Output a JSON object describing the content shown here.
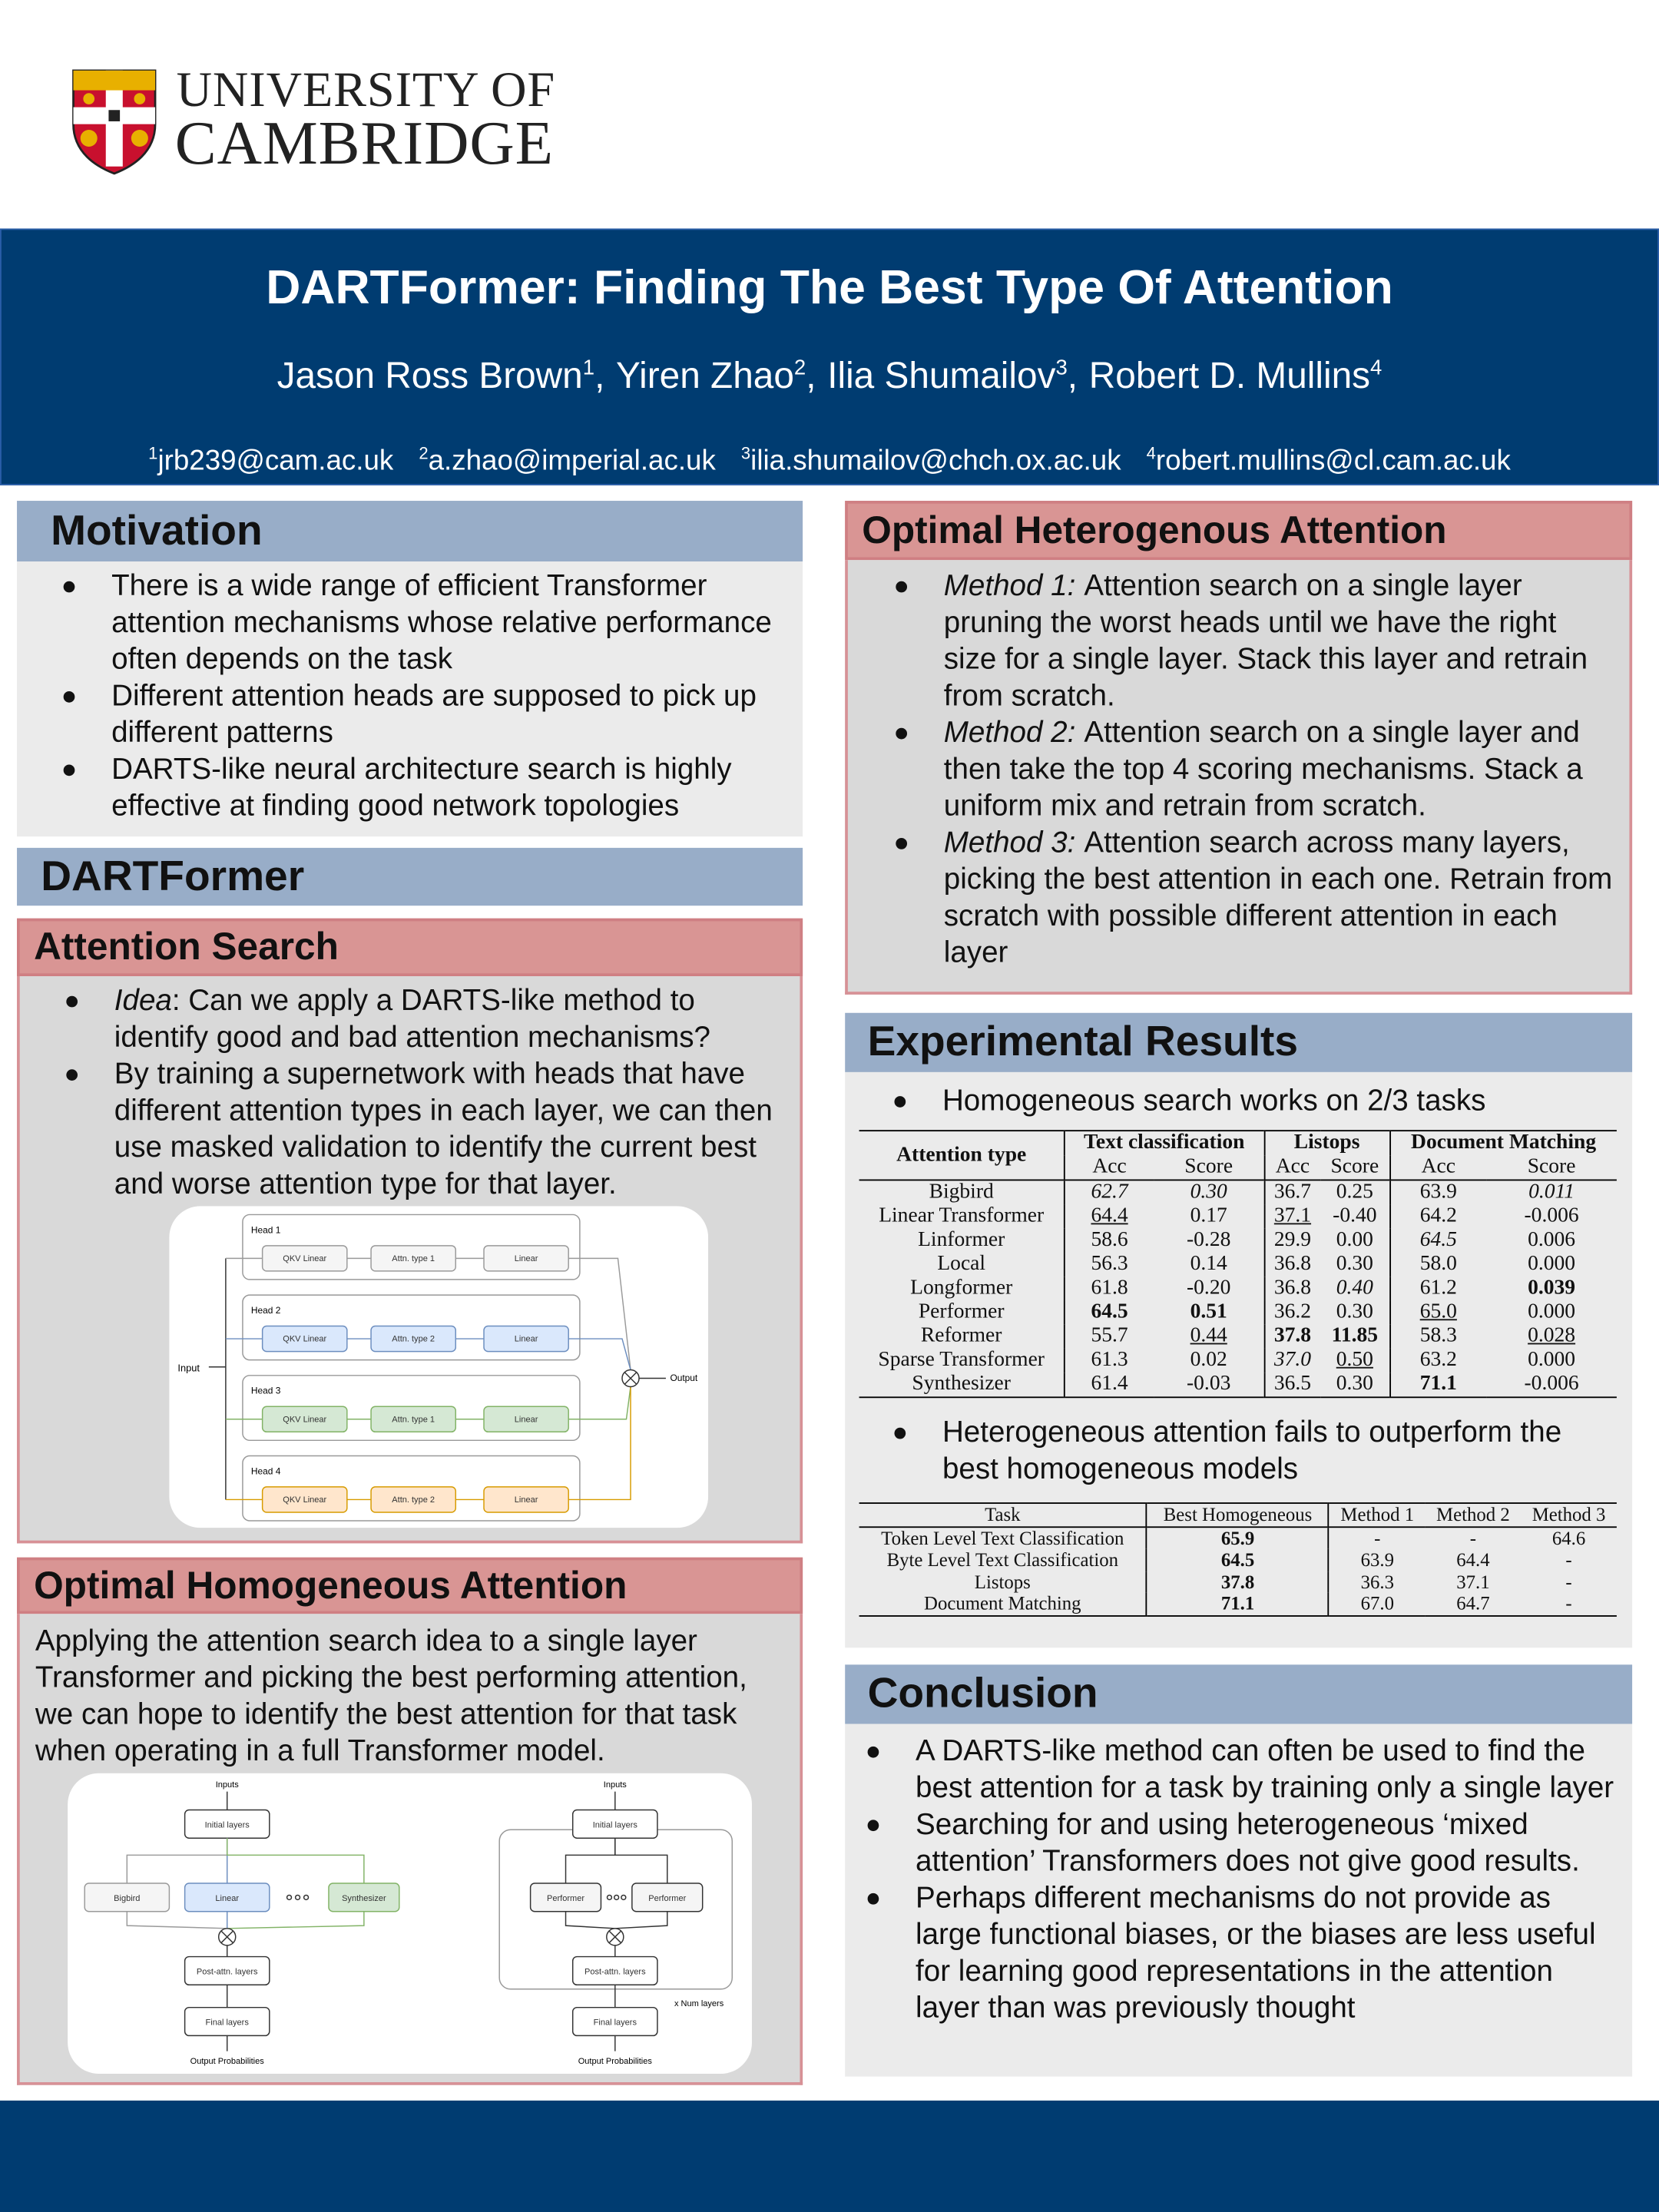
{
  "header": {
    "institution_line1": "UNIVERSITY OF",
    "institution_line2": "CAMBRIDGE",
    "title": "DARTFormer: Finding The Best Type Of Attention",
    "authors": [
      {
        "name": "Jason Ross Brown",
        "mark": "1",
        "separator": ","
      },
      {
        "name": "Yiren Zhao",
        "mark": "2",
        "separator": ","
      },
      {
        "name": "Ilia Shumailov",
        "mark": "3",
        "separator": ","
      },
      {
        "name": "Robert D. Mullins",
        "mark": "4"
      }
    ],
    "emails": [
      {
        "mark": "1",
        "address": "jrb239@cam.ac.uk"
      },
      {
        "mark": "2",
        "address": "a.zhao@imperial.ac.uk"
      },
      {
        "mark": "3",
        "address": "ilia.shumailov@chch.ox.ac.uk"
      },
      {
        "mark": "4",
        "address": "robert.mullins@cl.cam.ac.uk"
      }
    ]
  },
  "motivation": {
    "heading": "Motivation",
    "bullets": [
      "There is a wide range of efficient Transformer attention mechanisms whose relative performance often depends on the task",
      "Different attention heads are supposed to pick up different patterns",
      "DARTS-like neural architecture search is highly effective at finding good network topologies"
    ]
  },
  "dartformer": {
    "heading": "DARTFormer"
  },
  "attention_search": {
    "heading": "Attention Search",
    "bullets": [
      {
        "lead": "Idea",
        "text": ": Can we apply a DARTS-like method to identify good and bad attention mechanisms?"
      },
      "By training a supernetwork with heads that have different attention types in each layer, we can then use masked validation to identify the current best and worse attention type for that layer."
    ],
    "diagram": {
      "input": "Input",
      "output": "Output",
      "heads": [
        {
          "label": "Head 1",
          "blocks": [
            "QKV Linear",
            "Attn. type 1",
            "Linear"
          ]
        },
        {
          "label": "Head 2",
          "blocks": [
            "QKV Linear",
            "Attn. type 2",
            "Linear"
          ]
        },
        {
          "label": "Head 3",
          "blocks": [
            "QKV Linear",
            "Attn. type 1",
            "Linear"
          ]
        },
        {
          "label": "Head 4",
          "blocks": [
            "QKV Linear",
            "Attn. type 2",
            "Linear"
          ]
        }
      ]
    }
  },
  "optimal_homogeneous": {
    "heading": "Optimal Homogeneous Attention",
    "text": "Applying the attention search idea to a single layer Transformer and picking the best performing attention, we can hope to identify the best attention for that task when operating in a full Transformer model.",
    "diagram": {
      "left": {
        "inputs": "Inputs",
        "initial": "Initial layers",
        "attention": [
          "Bigbird",
          "Linear",
          "Synthesizer"
        ],
        "post": "Post-attn. layers",
        "final": "Final layers",
        "output": "Output Probabilities"
      },
      "right": {
        "inputs": "Inputs",
        "initial": "Initial layers",
        "attention": [
          "Performer",
          "Performer"
        ],
        "post": "Post-attn. layers",
        "repeat": "x Num layers",
        "final": "Final layers",
        "output": "Output Probabilities"
      }
    }
  },
  "optimal_heterogeneous": {
    "heading": "Optimal Heterogenous Attention",
    "bullets": [
      {
        "lead": "Method 1:",
        "text": "Attention search on a single layer pruning the worst heads until we have the right size for a single layer. Stack this layer and retrain from scratch."
      },
      {
        "lead": "Method 2:",
        "text": "Attention search on a single layer and then take the top 4 scoring mechanisms. Stack a uniform mix and retrain from scratch."
      },
      {
        "lead": "Method 3:",
        "text": "Attention search across many layers, picking the best attention in each one. Retrain from scratch with possible different attention in each layer"
      }
    ]
  },
  "experimental_results": {
    "heading": "Experimental Results",
    "finding_1": [
      "Homogeneous search works on 2/3 tasks"
    ],
    "table_1": {
      "column_header": "Attention type",
      "groups": [
        "Text classification",
        "Listops",
        "Document Matching"
      ],
      "subheaders": [
        "Acc",
        "Score",
        "Acc",
        "Score",
        "Acc",
        "Score"
      ],
      "rows": [
        {
          "name": "Bigbird",
          "values": [
            "62.7",
            "0.30",
            "36.7",
            "0.25",
            "63.9",
            "0.011"
          ]
        },
        {
          "name": "Linear Transformer",
          "values": [
            "64.4",
            "0.17",
            "37.1",
            "-0.40",
            "64.2",
            "-0.006"
          ]
        },
        {
          "name": "Linformer",
          "values": [
            "58.6",
            "-0.28",
            "29.9",
            "0.00",
            "64.5",
            "0.006"
          ]
        },
        {
          "name": "Local",
          "values": [
            "56.3",
            "0.14",
            "36.8",
            "0.30",
            "58.0",
            "0.000"
          ]
        },
        {
          "name": "Longformer",
          "values": [
            "61.8",
            "-0.20",
            "36.8",
            "0.40",
            "61.2",
            "0.039"
          ]
        },
        {
          "name": "Performer",
          "values": [
            "64.5",
            "0.51",
            "36.2",
            "0.30",
            "65.0",
            "0.000"
          ]
        },
        {
          "name": "Reformer",
          "values": [
            "55.7",
            "0.44",
            "37.8",
            "11.85",
            "58.3",
            "0.028"
          ]
        },
        {
          "name": "Sparse Transformer",
          "values": [
            "61.3",
            "0.02",
            "37.0",
            "0.50",
            "63.2",
            "0.000"
          ]
        },
        {
          "name": "Synthesizer",
          "values": [
            "61.4",
            "-0.03",
            "36.5",
            "0.30",
            "71.1",
            "-0.006"
          ]
        }
      ]
    },
    "finding_2": [
      "Heterogeneous attention fails to outperform the best homogeneous models"
    ],
    "table_2": {
      "columns": [
        "Task",
        "Best Homogeneous",
        "Method 1",
        "Method 2",
        "Method 3"
      ],
      "rows": [
        [
          "Token Level Text Classification",
          "65.9",
          "-",
          "-",
          "64.6"
        ],
        [
          "Byte Level Text Classification",
          "64.5",
          "63.9",
          "64.4",
          "-"
        ],
        [
          "Listops",
          "37.8",
          "36.3",
          "37.1",
          "-"
        ],
        [
          "Document Matching",
          "71.1",
          "67.0",
          "64.7",
          "-"
        ]
      ]
    }
  },
  "conclusion": {
    "heading": "Conclusion",
    "bullets": [
      "A DARTS-like method can often be used to find the best attention for a task by training only a single layer",
      "Searching for and using heterogeneous ‘mixed attention’ Transformers does not give good results.",
      "Perhaps different mechanisms do not provide as large functional biases, or the biases are less useful for learning good representations in the attention layer than was previously thought"
    ]
  }
}
